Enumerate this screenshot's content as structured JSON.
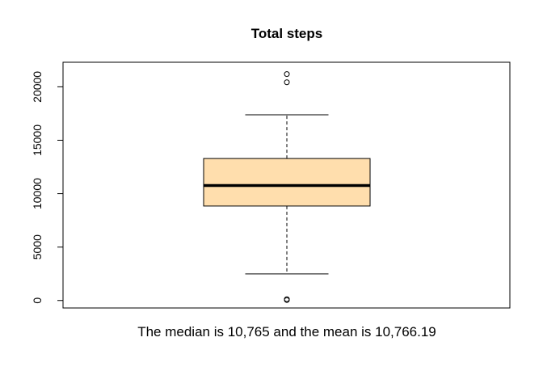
{
  "chart_data": {
    "type": "boxplot",
    "title": "Total steps",
    "xlabel": "The median is 10,765 and the mean is 10,766.19",
    "ylabel": "",
    "ylim": [
      -700,
      22300
    ],
    "y_ticks": [
      0,
      5000,
      10000,
      15000,
      20000
    ],
    "y_tick_labels": [
      "0",
      "5000",
      "10000",
      "15000",
      "20000"
    ],
    "box": {
      "lower_whisker": 2490,
      "q1": 8840,
      "median": 10765,
      "q3": 13290,
      "upper_whisker": 17380
    },
    "outliers": [
      41,
      126,
      20427,
      21194
    ],
    "box_fill": "#FFDEAD",
    "grid": false,
    "legend": "none"
  }
}
